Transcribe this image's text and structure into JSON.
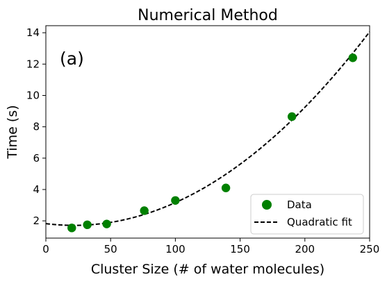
{
  "chart_data": {
    "type": "scatter",
    "title": "Numerical Method",
    "panel_label": "(a)",
    "xlabel": "Cluster Size (# of water molecules)",
    "ylabel": "Time (s)",
    "xlim": [
      0,
      250
    ],
    "ylim": [
      0.9,
      14.45
    ],
    "xticks": [
      0,
      50,
      100,
      150,
      200,
      250
    ],
    "yticks": [
      2,
      4,
      6,
      8,
      10,
      12,
      14
    ],
    "grid": false,
    "legend_position": "lower-right",
    "series": [
      {
        "name": "Data",
        "kind": "scatter",
        "color": "#008000",
        "x": [
          20,
          32,
          47,
          76,
          100,
          139,
          190,
          237
        ],
        "y": [
          1.55,
          1.75,
          1.8,
          2.65,
          3.3,
          4.1,
          8.65,
          12.4
        ]
      },
      {
        "name": "Quadratic fit",
        "kind": "line",
        "style": "dashed",
        "color": "#000000",
        "coefficients": {
          "a": 0.000237,
          "b": -0.0103,
          "c": 1.825
        },
        "x_range": [
          0,
          250
        ]
      }
    ]
  }
}
